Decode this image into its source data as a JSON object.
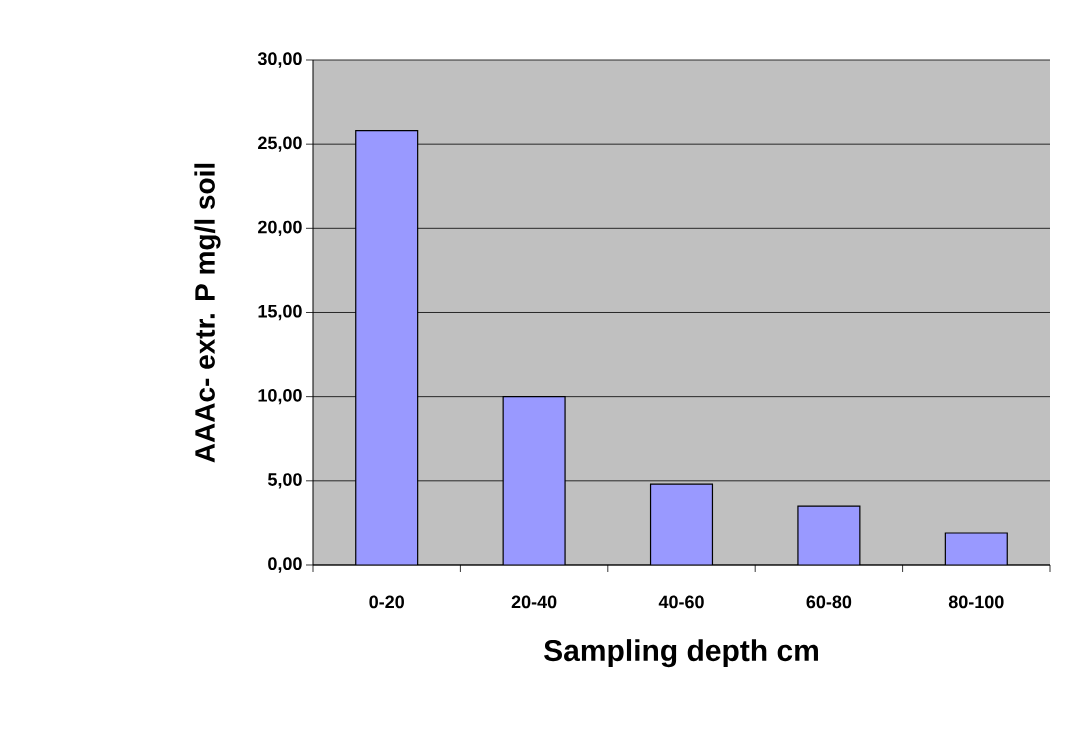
{
  "chart_data": {
    "type": "bar",
    "xlabel": "Sampling depth cm",
    "ylabel": "AAAc- extr. P mg/l soil",
    "categories": [
      "0-20",
      "20-40",
      "40-60",
      "60-80",
      "80-100"
    ],
    "values": [
      25.8,
      10.0,
      4.8,
      3.5,
      1.9
    ],
    "color": "#9999ff",
    "ylim": [
      0,
      30
    ],
    "yticks": [
      {
        "value": 0,
        "label": "0,00"
      },
      {
        "value": 5,
        "label": "5,00"
      },
      {
        "value": 10,
        "label": "10,00"
      },
      {
        "value": 15,
        "label": "15,00"
      },
      {
        "value": 20,
        "label": "20,00"
      },
      {
        "value": 25,
        "label": "25,00"
      },
      {
        "value": 30,
        "label": "30,00"
      }
    ],
    "grid": "y"
  }
}
